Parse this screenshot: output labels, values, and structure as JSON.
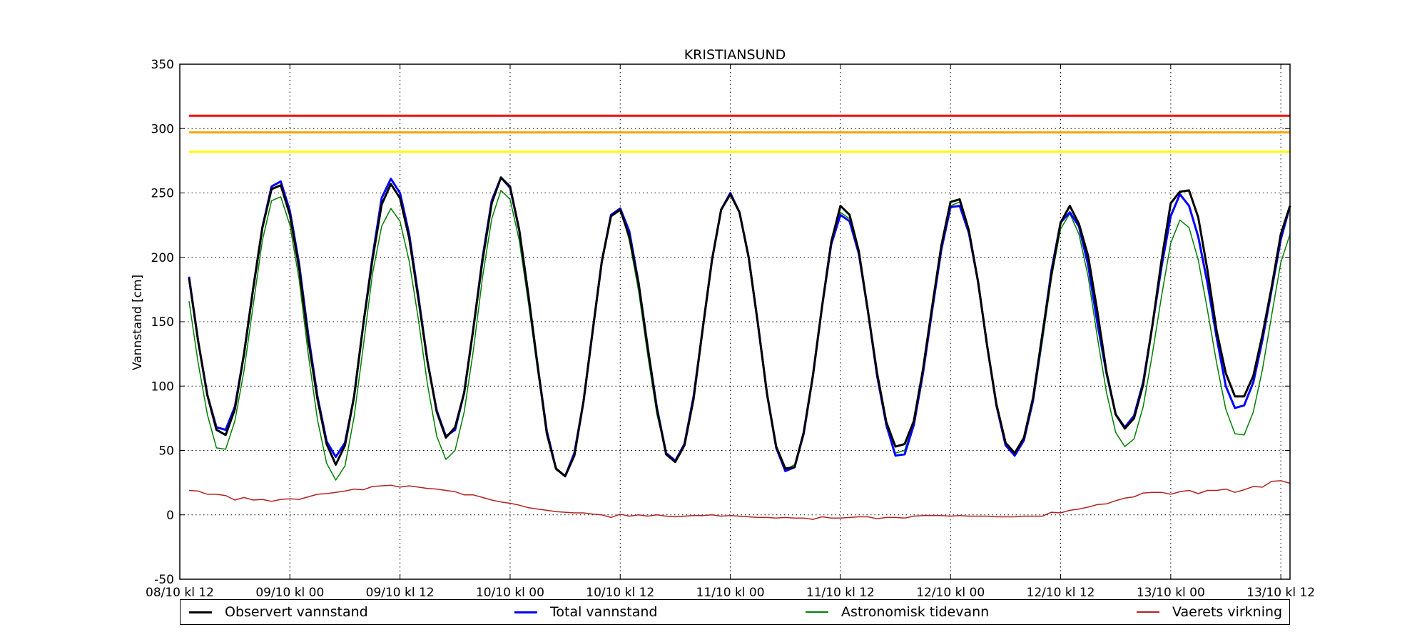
{
  "chart_data": {
    "type": "line",
    "title": "KRISTIANSUND",
    "xlabel": "",
    "ylabel": "Vannstand [cm]",
    "ylim": [
      -50,
      350
    ],
    "yticks": [
      -50,
      0,
      50,
      100,
      150,
      200,
      250,
      300,
      350
    ],
    "xlim": [
      0,
      121
    ],
    "xtick_positions": [
      0,
      12,
      24,
      36,
      48,
      60,
      72,
      84,
      96,
      108,
      120
    ],
    "xtick_labels": [
      "08/10 kl 12",
      "09/10 kl 00",
      "09/10 kl 12",
      "10/10 kl 00",
      "10/10 kl 12",
      "11/10 kl 00",
      "11/10 kl 12",
      "12/10 kl 00",
      "12/10 kl 12",
      "13/10 kl 00",
      "13/10 kl 12"
    ],
    "x_unit": "hours since 08/10 kl 12",
    "grid": true,
    "legend_position": "below",
    "thresholds": [
      {
        "value": 310,
        "color": "#ff0000"
      },
      {
        "value": 297,
        "color": "#ffa500"
      },
      {
        "value": 282,
        "color": "#ffff00"
      }
    ],
    "series": [
      {
        "name": "Astronomisk tidevann",
        "color": "#008000",
        "width": 1.5,
        "x": [
          1,
          2,
          3,
          4,
          5,
          6,
          7,
          8,
          9,
          10,
          11,
          12,
          13,
          14,
          15,
          16,
          17,
          18,
          19,
          20,
          21,
          22,
          23,
          24,
          25,
          26,
          27,
          28,
          29,
          30,
          31,
          32,
          33,
          34,
          35,
          36,
          37,
          38,
          39,
          40,
          41,
          42,
          43,
          44,
          45,
          46,
          47,
          48,
          49,
          50,
          51,
          52,
          53,
          54,
          55,
          56,
          57,
          58,
          59,
          60,
          61,
          62,
          63,
          64,
          65,
          66,
          67,
          68,
          69,
          70,
          71,
          72,
          73,
          74,
          75,
          76,
          77,
          78,
          79,
          80,
          81,
          82,
          83,
          84,
          85,
          86,
          87,
          88,
          89,
          90,
          91,
          92,
          93,
          94,
          95,
          96,
          97,
          98,
          99,
          100,
          101,
          102,
          103,
          104,
          105,
          106,
          107,
          108,
          109,
          110,
          111,
          112,
          113,
          114,
          115,
          116,
          117,
          118,
          119,
          120,
          121
        ],
        "values": [
          166,
          118,
          78,
          52,
          51,
          73,
          112,
          163,
          213,
          244,
          247,
          225,
          183,
          125,
          74,
          40,
          27,
          38,
          76,
          131,
          187,
          224,
          238,
          228,
          197,
          152,
          101,
          61,
          43,
          50,
          80,
          128,
          185,
          230,
          252,
          245,
          213,
          164,
          112,
          63,
          35,
          30,
          48,
          88,
          143,
          195,
          232,
          238,
          213,
          174,
          124,
          78,
          48,
          42,
          56,
          92,
          145,
          198,
          237,
          250,
          235,
          200,
          149,
          94,
          52,
          35,
          39,
          64,
          108,
          162,
          210,
          235,
          230,
          205,
          160,
          110,
          68,
          48,
          50,
          72,
          112,
          160,
          207,
          240,
          243,
          220,
          181,
          131,
          85,
          55,
          48,
          58,
          87,
          134,
          184,
          222,
          234,
          218,
          185,
          138,
          95,
          64,
          53,
          59,
          84,
          125,
          170,
          211,
          229,
          223,
          198,
          159,
          118,
          82,
          63,
          62,
          80,
          113,
          155,
          196,
          218
        ]
      },
      {
        "name": "Total vannstand",
        "color": "#0000ff",
        "width": 3,
        "x": [
          1,
          2,
          3,
          4,
          5,
          6,
          7,
          8,
          9,
          10,
          11,
          12,
          13,
          14,
          15,
          16,
          17,
          18,
          19,
          20,
          21,
          22,
          23,
          24,
          25,
          26,
          27,
          28,
          29,
          30,
          31,
          32,
          33,
          34,
          35,
          36,
          37,
          38,
          39,
          40,
          41,
          42,
          43,
          44,
          45,
          46,
          47,
          48,
          49,
          50,
          51,
          52,
          53,
          54,
          55,
          56,
          57,
          58,
          59,
          60,
          61,
          62,
          63,
          64,
          65,
          66,
          67,
          68,
          69,
          70,
          71,
          72,
          73,
          74,
          75,
          76,
          77,
          78,
          79,
          80,
          81,
          82,
          83,
          84,
          85,
          86,
          87,
          88,
          89,
          90,
          91,
          92,
          93,
          94,
          95,
          96,
          97,
          98,
          99,
          100,
          101,
          102,
          103,
          104,
          105,
          106,
          107,
          108,
          109,
          110,
          111,
          112,
          113,
          114,
          115,
          116,
          117,
          118,
          119,
          120,
          121
        ],
        "values": [
          185,
          135,
          93,
          68,
          66,
          84,
          125,
          176,
          223,
          255,
          259,
          236,
          195,
          140,
          92,
          57,
          45,
          56,
          92,
          148,
          200,
          246,
          261,
          250,
          218,
          170,
          119,
          81,
          61,
          66,
          95,
          145,
          200,
          244,
          262,
          254,
          221,
          170,
          116,
          65,
          36,
          30,
          48,
          88,
          143,
          197,
          233,
          238,
          220,
          180,
          130,
          83,
          48,
          42,
          55,
          92,
          145,
          198,
          237,
          250,
          235,
          200,
          149,
          94,
          52,
          34,
          37,
          63,
          108,
          162,
          210,
          233,
          228,
          203,
          158,
          108,
          70,
          46,
          47,
          70,
          110,
          159,
          206,
          239,
          240,
          219,
          181,
          131,
          85,
          54,
          46,
          58,
          89,
          139,
          190,
          227,
          235,
          224,
          194,
          149,
          110,
          78,
          68,
          77,
          103,
          147,
          193,
          232,
          249,
          240,
          216,
          180,
          138,
          100,
          83,
          85,
          103,
          136,
          175,
          214,
          240
        ]
      },
      {
        "name": "Observert vannstand",
        "color": "#000000",
        "width": 3,
        "x": [
          1,
          2,
          3,
          4,
          5,
          6,
          7,
          8,
          9,
          10,
          11,
          12,
          13,
          14,
          15,
          16,
          17,
          18,
          19,
          20,
          21,
          22,
          23,
          24,
          25,
          26,
          27,
          28,
          29,
          30,
          31,
          32,
          33,
          34,
          35,
          36,
          37,
          38,
          39,
          40,
          41,
          42,
          43,
          44,
          45,
          46,
          47,
          48,
          49,
          50,
          51,
          52,
          53,
          54,
          55,
          56,
          57,
          58,
          59,
          60,
          61,
          62,
          63,
          64,
          65,
          66,
          67,
          68,
          69,
          70,
          71,
          72,
          73,
          74,
          75,
          76,
          77,
          78,
          79,
          80,
          81,
          82,
          83,
          84,
          85,
          86,
          87,
          88,
          89,
          90,
          91,
          92,
          93,
          94,
          95,
          96,
          97,
          98,
          99,
          100,
          101,
          102,
          103,
          104,
          105,
          106,
          107,
          108,
          109,
          110,
          111,
          112,
          113,
          114,
          115,
          116,
          117,
          118,
          119,
          120,
          121
        ],
        "values": [
          184,
          135,
          93,
          66,
          62,
          82,
          125,
          176,
          223,
          253,
          256,
          233,
          192,
          136,
          90,
          55,
          39,
          54,
          92,
          148,
          198,
          241,
          257,
          246,
          215,
          168,
          119,
          80,
          60,
          68,
          95,
          145,
          198,
          242,
          262,
          255,
          221,
          170,
          116,
          63,
          36,
          30,
          46,
          88,
          143,
          197,
          232,
          237,
          216,
          180,
          130,
          82,
          47,
          41,
          54,
          90,
          145,
          198,
          237,
          249,
          235,
          200,
          149,
          94,
          53,
          36,
          37,
          64,
          108,
          162,
          212,
          240,
          233,
          205,
          158,
          110,
          72,
          53,
          55,
          73,
          113,
          162,
          209,
          243,
          245,
          221,
          181,
          131,
          86,
          56,
          48,
          60,
          91,
          140,
          187,
          227,
          240,
          226,
          201,
          158,
          111,
          78,
          67,
          75,
          101,
          147,
          198,
          242,
          251,
          252,
          231,
          190,
          143,
          110,
          92,
          92,
          108,
          140,
          177,
          218,
          240
        ]
      },
      {
        "name": "Vaerets virkning",
        "color": "#b22222",
        "width": 1.5,
        "x": [
          1,
          2,
          3,
          4,
          5,
          6,
          7,
          8,
          9,
          10,
          11,
          12,
          13,
          14,
          15,
          16,
          17,
          18,
          19,
          20,
          21,
          22,
          23,
          24,
          25,
          26,
          27,
          28,
          29,
          30,
          31,
          32,
          33,
          34,
          35,
          36,
          37,
          38,
          39,
          40,
          41,
          42,
          43,
          44,
          45,
          46,
          47,
          48,
          49,
          50,
          51,
          52,
          53,
          54,
          55,
          56,
          57,
          58,
          59,
          60,
          61,
          62,
          63,
          64,
          65,
          66,
          67,
          68,
          69,
          70,
          71,
          72,
          73,
          74,
          75,
          76,
          77,
          78,
          79,
          80,
          81,
          82,
          83,
          84,
          85,
          86,
          87,
          88,
          89,
          90,
          91,
          92,
          93,
          94,
          95,
          96,
          97,
          98,
          99,
          100,
          101,
          102,
          103,
          104,
          105,
          106,
          107,
          108,
          109,
          110,
          111,
          112,
          113,
          114,
          115,
          116,
          117,
          118,
          119,
          120,
          121
        ],
        "values": [
          19,
          18.5,
          16,
          16,
          15,
          11.5,
          13.5,
          11.5,
          12,
          10.5,
          12,
          12.5,
          12,
          14,
          16,
          16.5,
          17.5,
          18.5,
          20,
          19.5,
          22,
          22.5,
          23,
          21.5,
          22.5,
          21.5,
          20.5,
          20,
          19,
          18,
          15.5,
          15.5,
          13.5,
          11.5,
          10,
          9,
          7.5,
          5.5,
          4.5,
          3.5,
          2.5,
          2,
          1.5,
          1.5,
          0.5,
          0,
          -2,
          0.5,
          -1,
          0,
          -1,
          0,
          -1,
          -1.5,
          -1,
          -0.5,
          -0.5,
          0,
          -1,
          -0.5,
          -1,
          -1.5,
          -2,
          -2,
          -2.5,
          -2,
          -2.5,
          -2.5,
          -3.5,
          -1.5,
          -2.5,
          -2.5,
          -2,
          -1.5,
          -1.5,
          -3,
          -2,
          -2,
          -2.5,
          -1,
          -0.5,
          -0.5,
          -0.5,
          -1,
          -0.5,
          -1,
          -1,
          -1,
          -1.5,
          -1.5,
          -1.5,
          -1,
          -1,
          -1,
          2,
          1.5,
          3.5,
          4.5,
          6,
          8,
          8.5,
          11,
          13,
          14,
          17,
          17.5,
          17.5,
          16,
          18,
          19,
          16.5,
          19,
          19,
          20,
          17.5,
          19.5,
          22,
          21.5,
          26,
          26.5,
          24.5
        ]
      }
    ],
    "legend_order": [
      "Observert vannstand",
      "Total vannstand",
      "Astronomisk tidevann",
      "Vaerets virkning"
    ]
  }
}
